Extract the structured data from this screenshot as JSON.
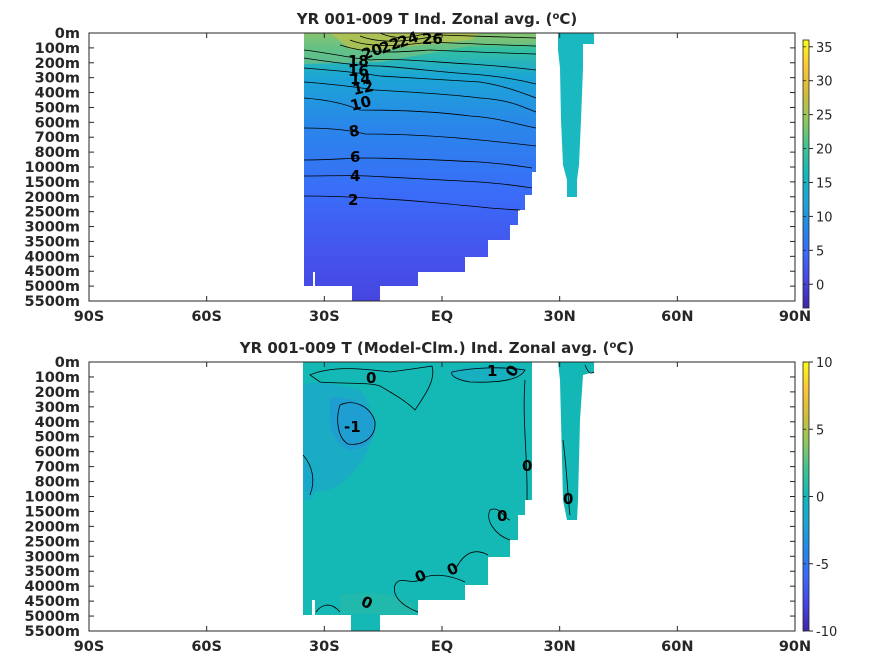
{
  "chart_data": [
    {
      "type": "heatmap",
      "title": "YR 001-009 T Ind. Zonal avg. (",
      "title_unit_sup": "o",
      "title_unit_tail": "C)",
      "xlabel": "",
      "ylabel": "",
      "x_ticks": [
        "90S",
        "60S",
        "30S",
        "EQ",
        "30N",
        "60N",
        "90N"
      ],
      "x_values": [
        -90,
        -60,
        -30,
        0,
        30,
        60,
        90
      ],
      "y_ticks": [
        "0m",
        "100m",
        "200m",
        "300m",
        "400m",
        "500m",
        "600m",
        "700m",
        "800m",
        "1000m",
        "1500m",
        "2000m",
        "2500m",
        "3000m",
        "3500m",
        "4000m",
        "4500m",
        "5000m",
        "5500m"
      ],
      "xlim": [
        -90,
        90
      ],
      "colorbar": {
        "ticks": [
          "35",
          "30",
          "25",
          "20",
          "15",
          "10",
          "5",
          "0"
        ],
        "tick_values": [
          35,
          30,
          25,
          20,
          15,
          10,
          5,
          0
        ],
        "range": [
          -3.5,
          36
        ]
      },
      "contour_labels": [
        "26",
        "24",
        "22",
        "20",
        "18",
        "16",
        "14",
        "12",
        "10",
        "8",
        "6",
        "4",
        "2"
      ],
      "contour_levels": [
        26,
        24,
        22,
        20,
        18,
        16,
        14,
        12,
        10,
        8,
        6,
        4,
        2
      ],
      "colormap": [
        "#3e26a8",
        "#4743e3",
        "#3b68fe",
        "#2388e9",
        "#1ca5d7",
        "#10b9bc",
        "#3ec392",
        "#8fc85f",
        "#d1bd3a",
        "#fcc538",
        "#f9fb15"
      ]
    },
    {
      "type": "heatmap",
      "title": "YR 001-009 T (Model-Clm.) Ind. Zonal avg. (",
      "title_unit_sup": "o",
      "title_unit_tail": "C)",
      "xlabel": "",
      "ylabel": "",
      "x_ticks": [
        "90S",
        "60S",
        "30S",
        "EQ",
        "30N",
        "60N",
        "90N"
      ],
      "x_values": [
        -90,
        -60,
        -30,
        0,
        30,
        60,
        90
      ],
      "y_ticks": [
        "0m",
        "100m",
        "200m",
        "300m",
        "400m",
        "500m",
        "600m",
        "700m",
        "800m",
        "1000m",
        "1500m",
        "2000m",
        "2500m",
        "3000m",
        "3500m",
        "4000m",
        "4500m",
        "5000m",
        "5500m"
      ],
      "xlim": [
        -90,
        90
      ],
      "colorbar": {
        "ticks": [
          "10",
          "5",
          "0",
          "-5",
          "-10"
        ],
        "tick_values": [
          10,
          5,
          0,
          -5,
          -10
        ],
        "range": [
          -10,
          10
        ]
      },
      "contour_labels": [
        "0",
        "1",
        "0",
        "-1",
        "0",
        "0",
        "0",
        "0",
        "0",
        "0"
      ],
      "colormap": [
        "#3e26a8",
        "#4743e3",
        "#3b68fe",
        "#2388e9",
        "#1ca5d7",
        "#10b9bc",
        "#3ec392",
        "#8fc85f",
        "#d1bd3a",
        "#fcc538",
        "#f9fb15"
      ]
    }
  ]
}
